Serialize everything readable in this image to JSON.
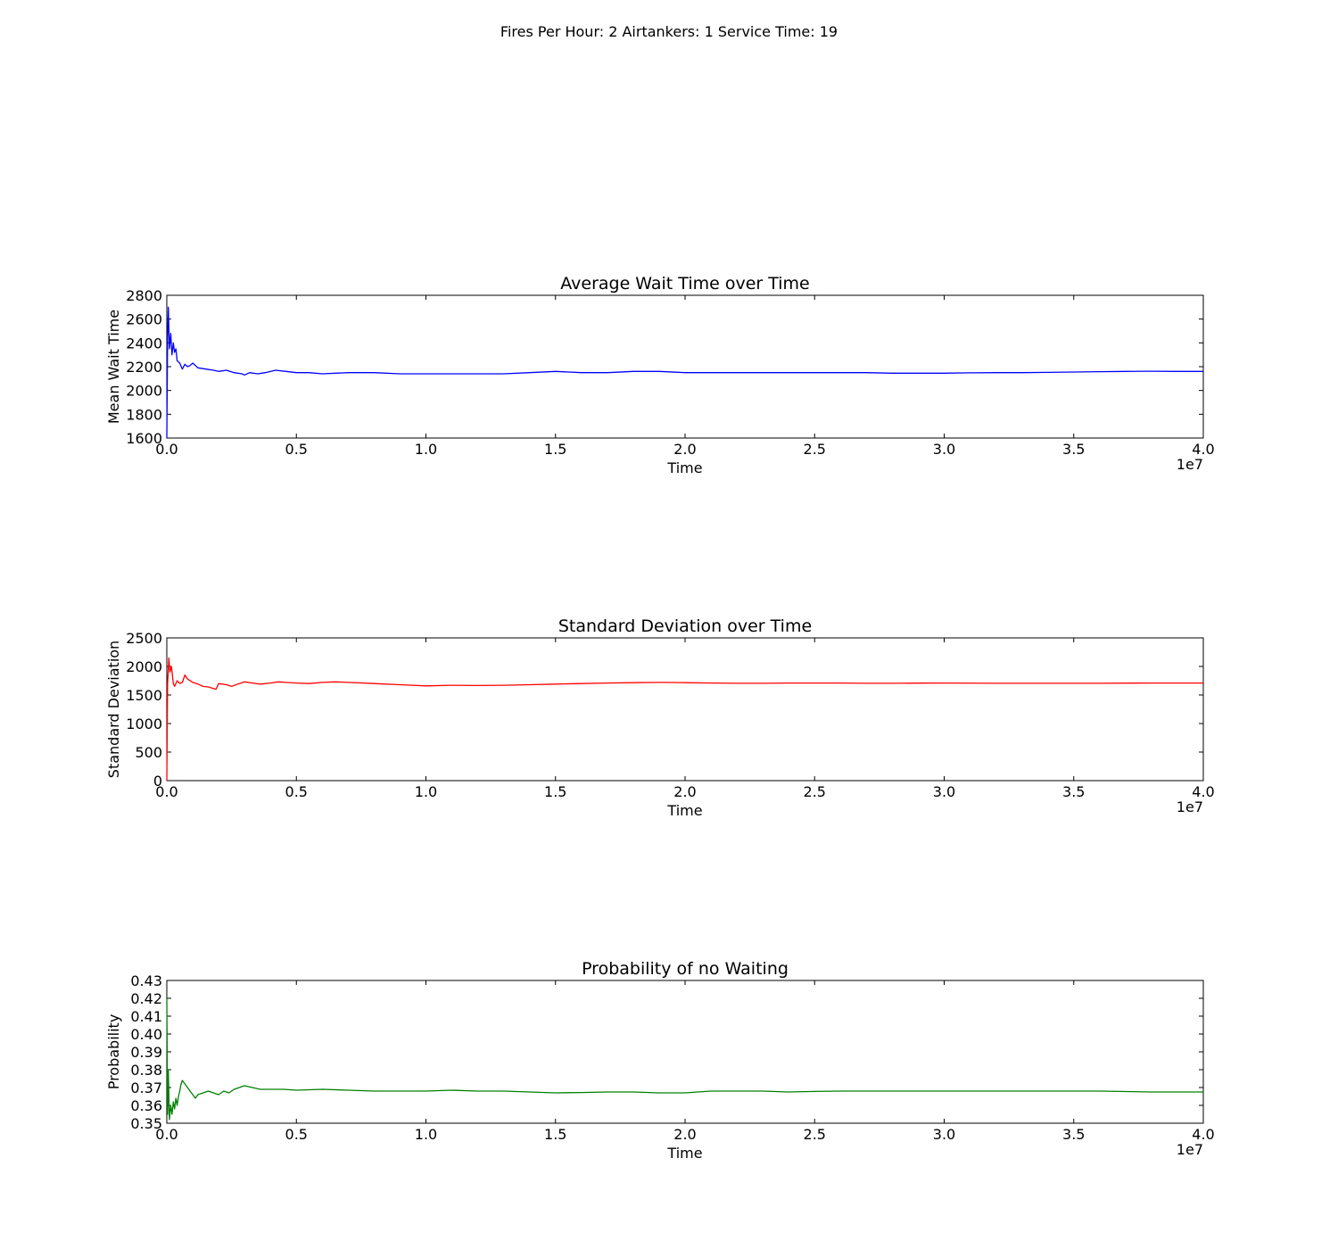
{
  "figure": {
    "suptitle": "Fires Per Hour: 2  Airtankers: 1  Service Time: 19"
  },
  "chart_data": [
    {
      "type": "line",
      "title": "Average Wait Time over Time",
      "xlabel": "Time",
      "ylabel": "Mean Wait Time",
      "x_offset_label": "1e7",
      "xlim": [
        0,
        40000000
      ],
      "ylim": [
        1600,
        2800
      ],
      "xticks": [
        0,
        5000000,
        10000000,
        15000000,
        20000000,
        25000000,
        30000000,
        35000000,
        40000000
      ],
      "xticklabels": [
        "0.0",
        "0.5",
        "1.0",
        "1.5",
        "2.0",
        "2.5",
        "3.0",
        "3.5",
        "4.0"
      ],
      "yticks": [
        1600,
        1800,
        2000,
        2200,
        2400,
        2600,
        2800
      ],
      "yticklabels": [
        "1600",
        "1800",
        "2000",
        "2200",
        "2400",
        "2600",
        "2800"
      ],
      "grid": false,
      "series": [
        {
          "color": "#0000ff",
          "x": [
            0,
            30000,
            60000,
            100000,
            150000,
            200000,
            250000,
            300000,
            350000,
            400000,
            500000,
            600000,
            700000,
            800000,
            900000,
            1000000,
            1200000,
            1500000,
            1800000,
            2000000,
            2300000,
            2600000,
            2900000,
            3000000,
            3200000,
            3500000,
            3800000,
            4200000,
            4600000,
            5000000,
            5500000,
            6000000,
            7000000,
            8000000,
            9000000,
            10000000,
            11000000,
            12000000,
            13000000,
            14000000,
            15000000,
            16000000,
            17000000,
            18000000,
            19000000,
            20000000,
            21000000,
            22000000,
            23000000,
            24000000,
            25000000,
            26000000,
            27000000,
            28000000,
            29000000,
            30000000,
            31000000,
            32000000,
            33000000,
            34000000,
            35000000,
            36000000,
            37000000,
            38000000,
            39000000,
            40000000
          ],
          "values": [
            1600,
            2450,
            2700,
            2350,
            2480,
            2300,
            2400,
            2320,
            2350,
            2250,
            2230,
            2180,
            2220,
            2200,
            2210,
            2230,
            2190,
            2180,
            2170,
            2160,
            2170,
            2150,
            2140,
            2130,
            2150,
            2140,
            2150,
            2170,
            2160,
            2150,
            2150,
            2140,
            2150,
            2150,
            2140,
            2140,
            2140,
            2140,
            2140,
            2150,
            2160,
            2150,
            2150,
            2160,
            2160,
            2150,
            2150,
            2150,
            2150,
            2150,
            2150,
            2150,
            2150,
            2145,
            2145,
            2145,
            2148,
            2150,
            2150,
            2152,
            2155,
            2158,
            2160,
            2162,
            2160,
            2160
          ]
        }
      ]
    },
    {
      "type": "line",
      "title": "Standard Deviation over Time",
      "xlabel": "Time",
      "ylabel": "Standard Deviation",
      "x_offset_label": "1e7",
      "xlim": [
        0,
        40000000
      ],
      "ylim": [
        0,
        2500
      ],
      "xticks": [
        0,
        5000000,
        10000000,
        15000000,
        20000000,
        25000000,
        30000000,
        35000000,
        40000000
      ],
      "xticklabels": [
        "0.0",
        "0.5",
        "1.0",
        "1.5",
        "2.0",
        "2.5",
        "3.0",
        "3.5",
        "4.0"
      ],
      "yticks": [
        0,
        500,
        1000,
        1500,
        2000,
        2500
      ],
      "yticklabels": [
        "0",
        "500",
        "1000",
        "1500",
        "2000",
        "2500"
      ],
      "grid": false,
      "series": [
        {
          "color": "#ff0000",
          "x": [
            0,
            30000,
            80000,
            120000,
            180000,
            250000,
            300000,
            400000,
            500000,
            600000,
            700000,
            800000,
            1000000,
            1200000,
            1400000,
            1600000,
            1900000,
            2000000,
            2300000,
            2500000,
            2800000,
            3000000,
            3300000,
            3600000,
            4000000,
            4300000,
            4600000,
            5000000,
            5500000,
            6000000,
            6500000,
            7000000,
            8000000,
            9000000,
            10000000,
            11000000,
            12000000,
            13000000,
            14000000,
            15000000,
            16000000,
            17000000,
            18000000,
            19000000,
            20000000,
            21000000,
            22000000,
            23000000,
            24000000,
            25000000,
            26000000,
            27000000,
            28000000,
            29000000,
            30000000,
            32000000,
            34000000,
            36000000,
            38000000,
            40000000
          ],
          "values": [
            0,
            1700,
            2150,
            1900,
            2000,
            1700,
            1650,
            1750,
            1700,
            1720,
            1850,
            1780,
            1720,
            1690,
            1650,
            1640,
            1600,
            1700,
            1680,
            1650,
            1700,
            1730,
            1710,
            1690,
            1710,
            1730,
            1720,
            1710,
            1700,
            1720,
            1730,
            1720,
            1700,
            1680,
            1660,
            1670,
            1665,
            1670,
            1680,
            1690,
            1700,
            1710,
            1715,
            1720,
            1715,
            1710,
            1705,
            1705,
            1710,
            1710,
            1710,
            1705,
            1705,
            1708,
            1710,
            1705,
            1705,
            1705,
            1710,
            1710
          ]
        }
      ]
    },
    {
      "type": "line",
      "title": "Probability of no Waiting",
      "xlabel": "Time",
      "ylabel": "Probability",
      "x_offset_label": "1e7",
      "xlim": [
        0,
        40000000
      ],
      "ylim": [
        0.35,
        0.43
      ],
      "xticks": [
        0,
        5000000,
        10000000,
        15000000,
        20000000,
        25000000,
        30000000,
        35000000,
        40000000
      ],
      "xticklabels": [
        "0.0",
        "0.5",
        "1.0",
        "1.5",
        "2.0",
        "2.5",
        "3.0",
        "3.5",
        "4.0"
      ],
      "yticks": [
        0.35,
        0.36,
        0.37,
        0.38,
        0.39,
        0.4,
        0.41,
        0.42,
        0.43
      ],
      "yticklabels": [
        "0.35",
        "0.36",
        "0.37",
        "0.38",
        "0.39",
        "0.40",
        "0.41",
        "0.42",
        "0.43"
      ],
      "grid": false,
      "series": [
        {
          "color": "#008000",
          "x": [
            0,
            30000,
            60000,
            100000,
            150000,
            200000,
            250000,
            300000,
            350000,
            400000,
            450000,
            500000,
            550000,
            600000,
            700000,
            800000,
            900000,
            1000000,
            1100000,
            1200000,
            1400000,
            1600000,
            1800000,
            2000000,
            2200000,
            2400000,
            2600000,
            2800000,
            3000000,
            3300000,
            3600000,
            4000000,
            4500000,
            5000000,
            6000000,
            7000000,
            8000000,
            9000000,
            10000000,
            11000000,
            12000000,
            13000000,
            14000000,
            15000000,
            16000000,
            17000000,
            18000000,
            19000000,
            20000000,
            21000000,
            22000000,
            23000000,
            24000000,
            25000000,
            26000000,
            27000000,
            28000000,
            29000000,
            30000000,
            32000000,
            34000000,
            36000000,
            38000000,
            40000000
          ],
          "values": [
            0.42,
            0.355,
            0.38,
            0.352,
            0.36,
            0.355,
            0.362,
            0.358,
            0.364,
            0.36,
            0.365,
            0.368,
            0.372,
            0.374,
            0.372,
            0.37,
            0.368,
            0.366,
            0.364,
            0.366,
            0.367,
            0.368,
            0.367,
            0.366,
            0.368,
            0.367,
            0.369,
            0.37,
            0.371,
            0.37,
            0.369,
            0.369,
            0.369,
            0.3685,
            0.369,
            0.3685,
            0.368,
            0.368,
            0.368,
            0.3685,
            0.368,
            0.368,
            0.3675,
            0.367,
            0.3672,
            0.3675,
            0.3675,
            0.367,
            0.367,
            0.368,
            0.368,
            0.368,
            0.3675,
            0.3678,
            0.368,
            0.368,
            0.368,
            0.368,
            0.368,
            0.368,
            0.368,
            0.368,
            0.3675,
            0.3675
          ]
        }
      ]
    }
  ]
}
